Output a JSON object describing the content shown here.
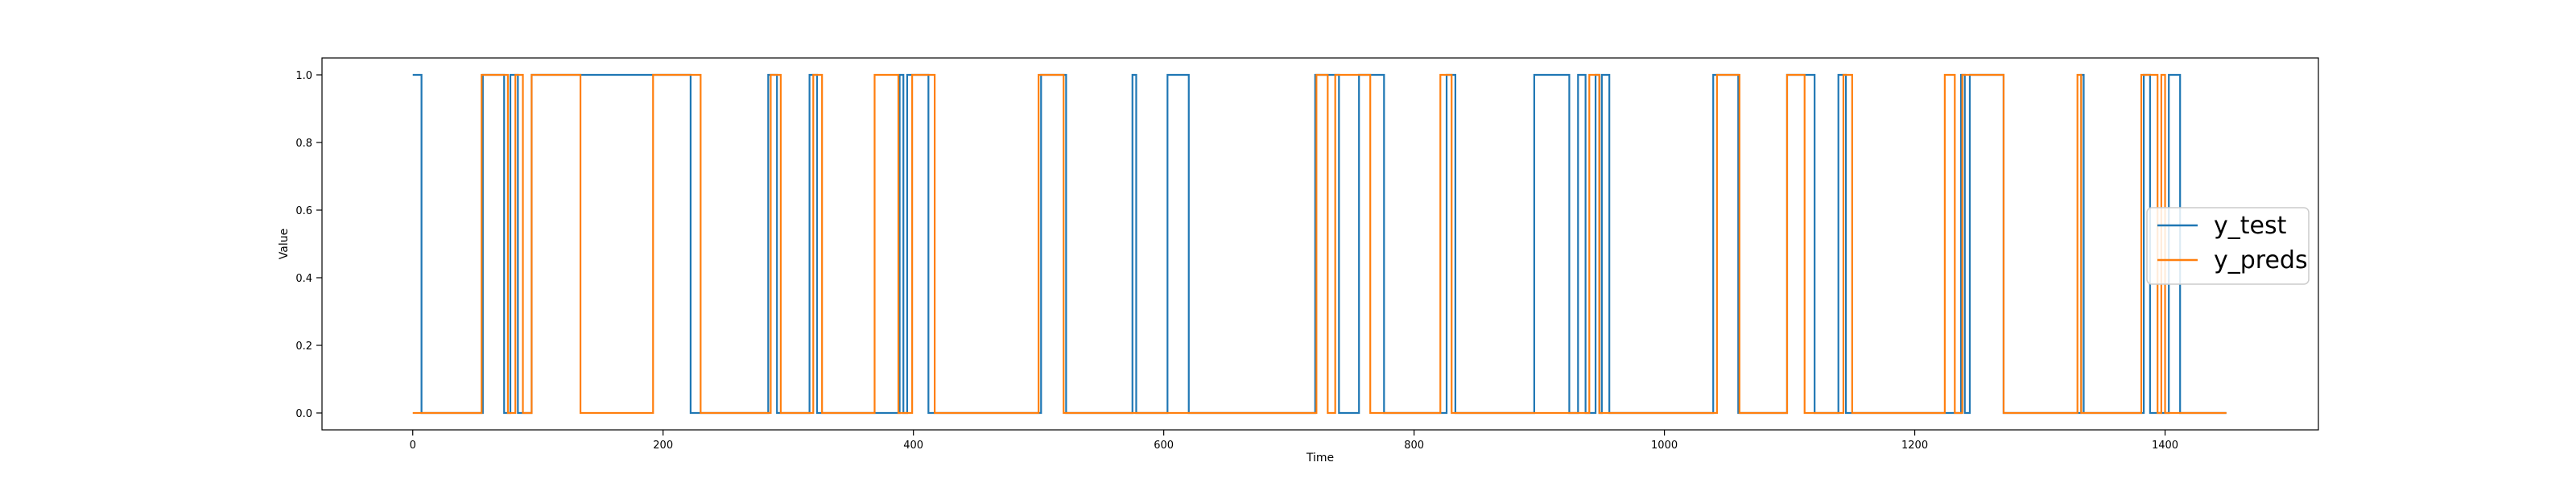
{
  "chart_data": {
    "type": "line",
    "title": "",
    "xlabel": "Time",
    "ylabel": "Value",
    "xlim": [
      -72.5,
      1522.5
    ],
    "ylim": [
      -0.05,
      1.05
    ],
    "xticks": [
      0,
      200,
      400,
      600,
      800,
      1000,
      1200,
      1400
    ],
    "yticks": [
      0.0,
      0.2,
      0.4,
      0.6,
      0.8,
      1.0
    ],
    "ytick_labels": [
      "0.0",
      "0.2",
      "0.4",
      "0.6",
      "0.8",
      "1.0"
    ],
    "step": true,
    "x_end": 1449,
    "legend_position": "center-right",
    "series": [
      {
        "name": "y_test",
        "color": "#1f77b4",
        "initial": 1,
        "transitions": [
          [
            7,
            0
          ],
          [
            56,
            1
          ],
          [
            73,
            0
          ],
          [
            78,
            1
          ],
          [
            84,
            0
          ],
          [
            95,
            1
          ],
          [
            173,
            1
          ],
          [
            222,
            0
          ],
          [
            284,
            1
          ],
          [
            291,
            0
          ],
          [
            317,
            1
          ],
          [
            323,
            0
          ],
          [
            389,
            1
          ],
          [
            392,
            0
          ],
          [
            395,
            1
          ],
          [
            412,
            0
          ],
          [
            502,
            1
          ],
          [
            522,
            0
          ],
          [
            575,
            1
          ],
          [
            578,
            0
          ],
          [
            603,
            1
          ],
          [
            620,
            0
          ],
          [
            721,
            1
          ],
          [
            740,
            0
          ],
          [
            756,
            1
          ],
          [
            776,
            0
          ],
          [
            826,
            1
          ],
          [
            833,
            0
          ],
          [
            896,
            1
          ],
          [
            924,
            0
          ],
          [
            931,
            1
          ],
          [
            937,
            0
          ],
          [
            945,
            1
          ],
          [
            948,
            0
          ],
          [
            950,
            1
          ],
          [
            956,
            0
          ],
          [
            1039,
            1
          ],
          [
            1059,
            0
          ],
          [
            1098,
            1
          ],
          [
            1120,
            0
          ],
          [
            1139,
            1
          ],
          [
            1145,
            0
          ],
          [
            1237,
            1
          ],
          [
            1240,
            0
          ],
          [
            1244,
            1
          ],
          [
            1271,
            0
          ],
          [
            1333,
            1
          ],
          [
            1335,
            0
          ],
          [
            1383,
            1
          ],
          [
            1388,
            0
          ],
          [
            1403,
            1
          ],
          [
            1412,
            0
          ]
        ]
      },
      {
        "name": "y_preds",
        "color": "#ff7f0e",
        "initial": 0,
        "transitions": [
          [
            55,
            1
          ],
          [
            76,
            0
          ],
          [
            82,
            1
          ],
          [
            88,
            0
          ],
          [
            95,
            1
          ],
          [
            134,
            0
          ],
          [
            192,
            1
          ],
          [
            230,
            0
          ],
          [
            286,
            1
          ],
          [
            294,
            0
          ],
          [
            320,
            1
          ],
          [
            327,
            0
          ],
          [
            369,
            1
          ],
          [
            388,
            0
          ],
          [
            399,
            1
          ],
          [
            417,
            0
          ],
          [
            500,
            1
          ],
          [
            520,
            0
          ],
          [
            722,
            1
          ],
          [
            731,
            0
          ],
          [
            737,
            1
          ],
          [
            765,
            0
          ],
          [
            821,
            1
          ],
          [
            830,
            0
          ],
          [
            940,
            1
          ],
          [
            948,
            0
          ],
          [
            1042,
            1
          ],
          [
            1060,
            0
          ],
          [
            1098,
            1
          ],
          [
            1112,
            0
          ],
          [
            1143,
            1
          ],
          [
            1150,
            0
          ],
          [
            1224,
            1
          ],
          [
            1232,
            0
          ],
          [
            1238,
            1
          ],
          [
            1271,
            0
          ],
          [
            1330,
            1
          ],
          [
            1333,
            0
          ],
          [
            1381,
            1
          ],
          [
            1394,
            0
          ],
          [
            1397,
            1
          ],
          [
            1400,
            0
          ]
        ]
      }
    ]
  }
}
